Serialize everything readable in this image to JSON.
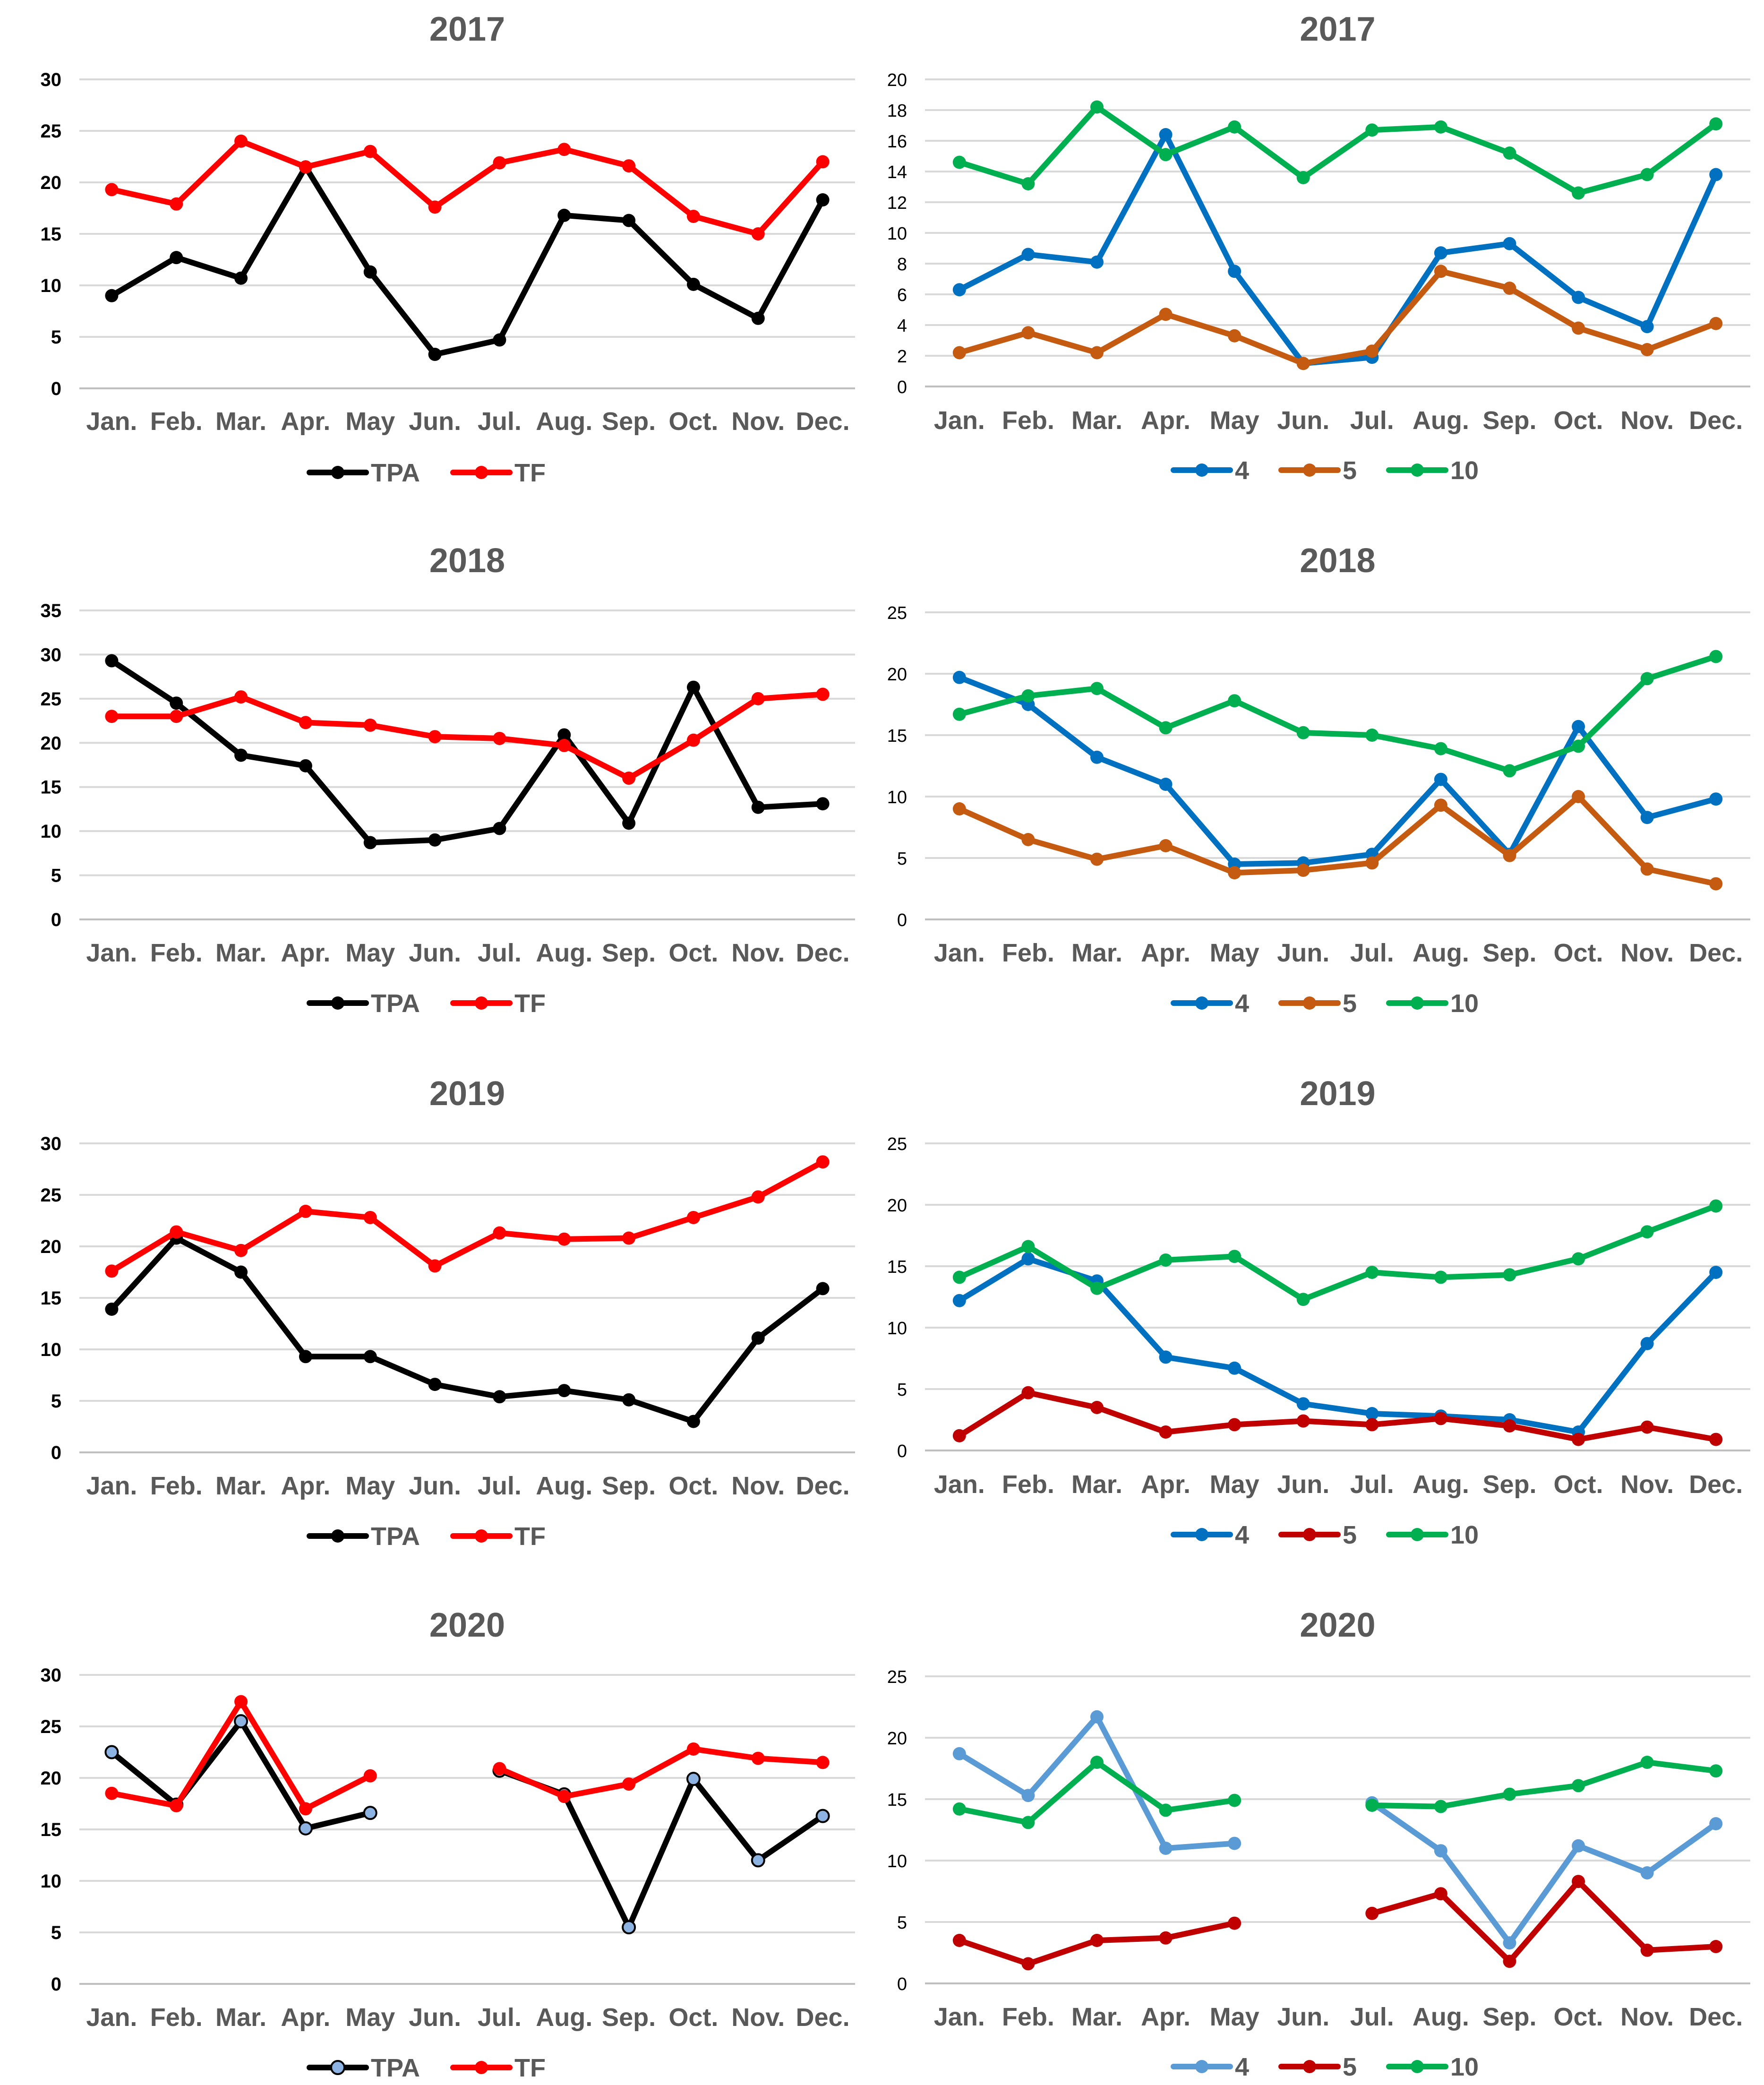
{
  "months": [
    "Jan.",
    "Feb.",
    "Mar.",
    "Apr.",
    "May",
    "Jun.",
    "Jul.",
    "Aug.",
    "Sep.",
    "Oct.",
    "Nov.",
    "Dec."
  ],
  "colors": {
    "black": "#000000",
    "red": "#ff0000",
    "blue": "#0070c0",
    "orange": "#c55a11",
    "green": "#00b050",
    "darkred": "#c00000",
    "lightblue": "#5b9bd5",
    "point_blue": "#8db3e2"
  },
  "chart_data": [
    {
      "id": "tpa-tf-2017",
      "type": "line",
      "title": "2017",
      "ylim": [
        0,
        30
      ],
      "yticks": [
        0,
        5,
        10,
        15,
        20,
        25,
        30
      ],
      "series": [
        {
          "name": "TPA",
          "color": "#000000",
          "values": [
            9.0,
            12.7,
            10.7,
            21.5,
            11.3,
            3.3,
            4.7,
            16.8,
            16.3,
            10.1,
            6.8,
            18.3
          ]
        },
        {
          "name": "TF",
          "color": "#ff0000",
          "values": [
            19.3,
            17.9,
            24.0,
            21.5,
            23.0,
            17.6,
            21.9,
            23.2,
            21.6,
            16.7,
            15.0,
            22.0
          ]
        }
      ]
    },
    {
      "id": "stations-2017",
      "type": "line",
      "title": "2017",
      "ylim": [
        0,
        20
      ],
      "yticks": [
        0,
        2,
        4,
        6,
        8,
        10,
        12,
        14,
        16,
        18,
        20
      ],
      "series": [
        {
          "name": "4",
          "color": "#0070c0",
          "values": [
            6.3,
            8.6,
            8.1,
            16.4,
            7.5,
            1.5,
            1.9,
            8.7,
            9.3,
            5.8,
            3.9,
            13.8
          ]
        },
        {
          "name": "5",
          "color": "#c55a11",
          "values": [
            2.2,
            3.5,
            2.2,
            4.7,
            3.3,
            1.5,
            2.3,
            7.5,
            6.4,
            3.8,
            2.4,
            4.1
          ]
        },
        {
          "name": "10",
          "color": "#00b050",
          "values": [
            14.6,
            13.2,
            18.2,
            15.1,
            16.9,
            13.6,
            16.7,
            16.9,
            15.2,
            12.6,
            13.8,
            17.1
          ]
        }
      ]
    },
    {
      "id": "tpa-tf-2018",
      "type": "line",
      "title": "2018",
      "ylim": [
        0,
        35
      ],
      "yticks": [
        0,
        5,
        10,
        15,
        20,
        25,
        30,
        35
      ],
      "series": [
        {
          "name": "TPA",
          "color": "#000000",
          "values": [
            29.3,
            24.5,
            18.6,
            17.4,
            8.7,
            9.0,
            10.3,
            20.9,
            10.9,
            26.3,
            12.7,
            13.1
          ]
        },
        {
          "name": "TF",
          "color": "#ff0000",
          "values": [
            23.0,
            23.0,
            25.2,
            22.3,
            22.0,
            20.7,
            20.5,
            19.7,
            16.0,
            20.3,
            25.0,
            25.5
          ]
        }
      ]
    },
    {
      "id": "stations-2018",
      "type": "line",
      "title": "2018",
      "ylim": [
        0,
        25
      ],
      "yticks": [
        0,
        5,
        10,
        15,
        20,
        25
      ],
      "series": [
        {
          "name": "4",
          "color": "#0070c0",
          "values": [
            19.7,
            17.5,
            13.2,
            11.0,
            4.5,
            4.6,
            5.3,
            11.4,
            5.3,
            15.7,
            8.3,
            9.8
          ]
        },
        {
          "name": "5",
          "color": "#c55a11",
          "values": [
            9.0,
            6.5,
            4.9,
            6.0,
            3.8,
            4.0,
            4.6,
            9.3,
            5.2,
            10.0,
            4.1,
            2.9
          ]
        },
        {
          "name": "10",
          "color": "#00b050",
          "values": [
            16.7,
            18.2,
            18.8,
            15.6,
            17.8,
            15.2,
            15.0,
            13.9,
            12.1,
            14.1,
            19.6,
            21.4
          ]
        }
      ]
    },
    {
      "id": "tpa-tf-2019",
      "type": "line",
      "title": "2019",
      "ylim": [
        0,
        30
      ],
      "yticks": [
        0,
        5,
        10,
        15,
        20,
        25,
        30
      ],
      "series": [
        {
          "name": "TPA",
          "color": "#000000",
          "values": [
            13.9,
            20.8,
            17.5,
            9.3,
            9.3,
            6.6,
            5.4,
            6.0,
            5.1,
            3.0,
            11.1,
            15.9
          ]
        },
        {
          "name": "TF",
          "color": "#ff0000",
          "values": [
            17.6,
            21.4,
            19.6,
            23.4,
            22.8,
            18.1,
            21.3,
            20.7,
            20.8,
            22.8,
            24.8,
            28.2
          ]
        }
      ]
    },
    {
      "id": "stations-2019",
      "type": "line",
      "title": "2019",
      "ylim": [
        0,
        25
      ],
      "yticks": [
        0,
        5,
        10,
        15,
        20,
        25
      ],
      "series": [
        {
          "name": "4",
          "color": "#0070c0",
          "values": [
            12.2,
            15.6,
            13.8,
            7.6,
            6.7,
            3.8,
            3.0,
            2.8,
            2.5,
            1.5,
            8.7,
            14.5
          ]
        },
        {
          "name": "5",
          "color": "#c00000",
          "values": [
            1.2,
            4.7,
            3.5,
            1.5,
            2.1,
            2.4,
            2.1,
            2.6,
            2.0,
            0.9,
            1.9,
            0.9
          ]
        },
        {
          "name": "10",
          "color": "#00b050",
          "values": [
            14.1,
            16.6,
            13.2,
            15.5,
            15.8,
            12.3,
            14.5,
            14.1,
            14.3,
            15.6,
            17.8,
            19.9
          ]
        }
      ]
    },
    {
      "id": "tpa-tf-2020",
      "type": "line",
      "title": "2020",
      "ylim": [
        0,
        30
      ],
      "yticks": [
        0,
        5,
        10,
        15,
        20,
        25,
        30
      ],
      "series": [
        {
          "name": "TPA",
          "color": "#000000",
          "point_color": "#8db3e2",
          "values": [
            22.5,
            17.4,
            25.5,
            15.1,
            16.6,
            null,
            20.7,
            18.4,
            5.5,
            19.9,
            12.0,
            16.3
          ]
        },
        {
          "name": "TF",
          "color": "#ff0000",
          "values": [
            18.5,
            17.3,
            27.4,
            17.0,
            20.2,
            null,
            20.9,
            18.2,
            19.4,
            22.8,
            21.9,
            21.5
          ]
        }
      ]
    },
    {
      "id": "stations-2020",
      "type": "line",
      "title": "2020",
      "ylim": [
        0,
        25
      ],
      "yticks": [
        0,
        5,
        10,
        15,
        20,
        25
      ],
      "series": [
        {
          "name": "4",
          "color": "#5b9bd5",
          "values": [
            18.7,
            15.3,
            21.7,
            11.0,
            11.4,
            null,
            14.7,
            10.8,
            3.3,
            11.2,
            9.0,
            13.0
          ]
        },
        {
          "name": "5",
          "color": "#c00000",
          "values": [
            3.5,
            1.6,
            3.5,
            3.7,
            4.9,
            null,
            5.7,
            7.3,
            1.8,
            8.3,
            2.7,
            3.0
          ]
        },
        {
          "name": "10",
          "color": "#00b050",
          "values": [
            14.2,
            13.1,
            18.0,
            14.1,
            14.9,
            null,
            14.5,
            14.4,
            15.4,
            16.1,
            18.0,
            17.3
          ]
        }
      ]
    }
  ]
}
